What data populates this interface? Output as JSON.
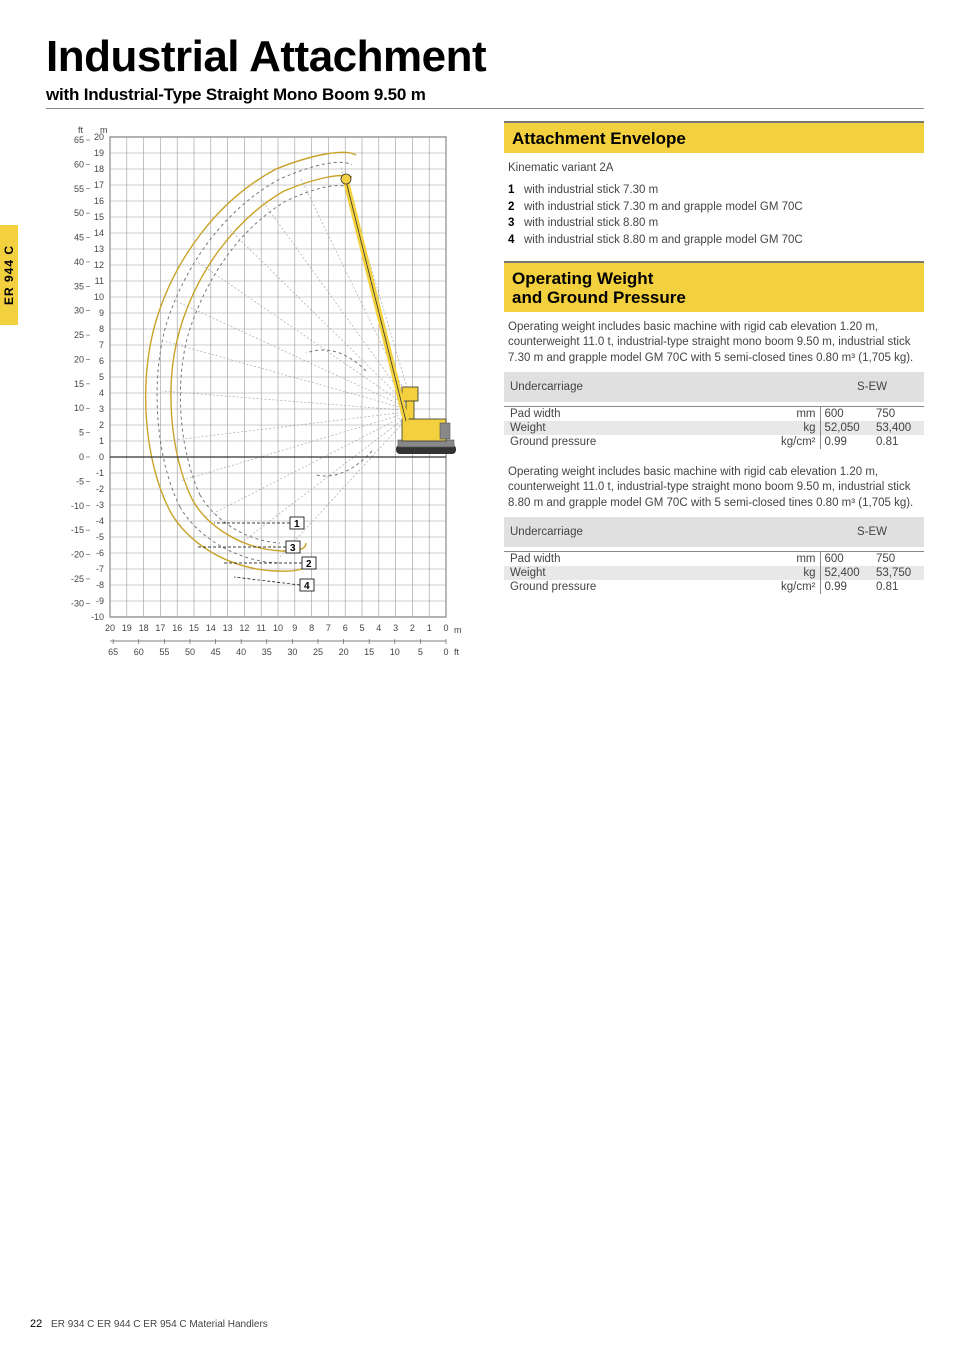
{
  "sideTab": "ER 944 C",
  "title": "Industrial Attachment",
  "subtitle": "with Industrial-Type Straight Mono Boom 9.50 m",
  "chart": {
    "unit_ft": "ft",
    "unit_m": "m",
    "y_m_ticks": [
      20,
      19,
      18,
      17,
      16,
      15,
      14,
      13,
      12,
      11,
      10,
      9,
      8,
      7,
      6,
      5,
      4,
      3,
      2,
      1,
      0,
      -1,
      -2,
      -3,
      -4,
      -5,
      -6,
      -7,
      -8,
      -9,
      -10
    ],
    "y_ft_ticks": [
      65,
      60,
      55,
      50,
      45,
      40,
      35,
      30,
      25,
      20,
      15,
      10,
      5,
      0,
      -5,
      -10,
      -15,
      -20,
      -25,
      -30
    ],
    "x_m_ticks": [
      20,
      19,
      18,
      17,
      16,
      15,
      14,
      13,
      12,
      11,
      10,
      9,
      8,
      7,
      6,
      5,
      4,
      3,
      2,
      1,
      0
    ],
    "x_ft_ticks": [
      65,
      60,
      55,
      50,
      45,
      40,
      35,
      30,
      25,
      20,
      15,
      10,
      5,
      0
    ],
    "x_unit_m": "m",
    "x_unit_ft": "ft",
    "callouts": {
      "1": "1",
      "2": "2",
      "3": "3",
      "4": "4"
    },
    "colors": {
      "curve_solid": "#c9a227",
      "curve_dash": "#777777",
      "machine_yellow": "#f3d03e",
      "machine_grey": "#888888",
      "grid": "#999999"
    },
    "plot": {
      "x_min_m": 0,
      "x_max_m": 21,
      "y_min_m": -10,
      "y_max_m": 20
    }
  },
  "sections": {
    "envelope": {
      "title": "Attachment Envelope",
      "kinematic": "Kinematic variant 2A",
      "items": [
        {
          "n": "1",
          "text": "with industrial stick 7.30 m"
        },
        {
          "n": "2",
          "text": "with industrial stick 7.30 m and grapple model GM 70C"
        },
        {
          "n": "3",
          "text": "with industrial stick 8.80 m"
        },
        {
          "n": "4",
          "text": "with industrial stick 8.80 m and grapple model GM 70C"
        }
      ]
    },
    "weight": {
      "title": "Operating Weight\nand Ground Pressure",
      "para1": "Operating weight includes basic machine with rigid cab elevation 1.20 m, counterweight 11.0 t, industrial-type straight mono boom 9.50 m, industrial stick 7.30 m and grapple model GM 70C with 5 semi-closed tines 0.80 m³ (1,705 kg).",
      "para2": "Operating weight includes basic machine with rigid cab elevation 1.20 m, counterweight 11.0 t, industrial-type straight mono boom 9.50 m, industrial stick 8.80 m and grapple model GM 70C with 5 semi-closed tines 0.80 m³ (1,705 kg).",
      "table_header_uc": "Undercarriage",
      "table_header_val": "S-EW",
      "rows_labels": {
        "pad": "Pad width",
        "pad_unit": "mm",
        "wt": "Weight",
        "wt_unit": "kg",
        "gp": "Ground pressure",
        "gp_unit": "kg/cm²"
      },
      "table1": {
        "pad": [
          "600",
          "750"
        ],
        "wt": [
          "52,050",
          "53,400"
        ],
        "gp": [
          "0.99",
          "0.81"
        ]
      },
      "table2": {
        "pad": [
          "600",
          "750"
        ],
        "wt": [
          "52,400",
          "53,750"
        ],
        "gp": [
          "0.99",
          "0.81"
        ]
      }
    }
  },
  "footer": {
    "page": "22",
    "text": "ER 934 C  ER 944 C  ER 954 C Material Handlers"
  }
}
